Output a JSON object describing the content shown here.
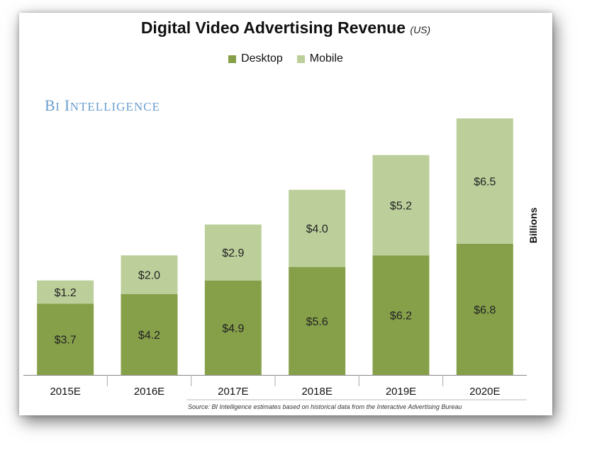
{
  "chart_data": {
    "type": "bar",
    "stacked": true,
    "title": "Digital Video Advertising Revenue",
    "title_suffix": "(US)",
    "brand": "BI Intelligence",
    "unit_label": "Billions",
    "source": "Source: BI Intelligence estimates based on historical data from the Interactive Advertising Bureau",
    "categories": [
      "2015E",
      "2016E",
      "2017E",
      "2018E",
      "2019E",
      "2020E"
    ],
    "series": [
      {
        "name": "Desktop",
        "color": "#86a04a",
        "values": [
          3.7,
          4.2,
          4.9,
          5.6,
          6.2,
          6.8
        ],
        "labels": [
          "$3.7",
          "$4.2",
          "$4.9",
          "$5.6",
          "$6.2",
          "$6.8"
        ]
      },
      {
        "name": "Mobile",
        "color": "#bccf9a",
        "values": [
          1.2,
          2.0,
          2.9,
          4.0,
          5.2,
          6.5
        ],
        "labels": [
          "$1.2",
          "$2.0",
          "$2.9",
          "$4.0",
          "$5.2",
          "$6.5"
        ]
      }
    ],
    "ylim": [
      0,
      14
    ],
    "legend_position": "top-center",
    "grid": false
  }
}
